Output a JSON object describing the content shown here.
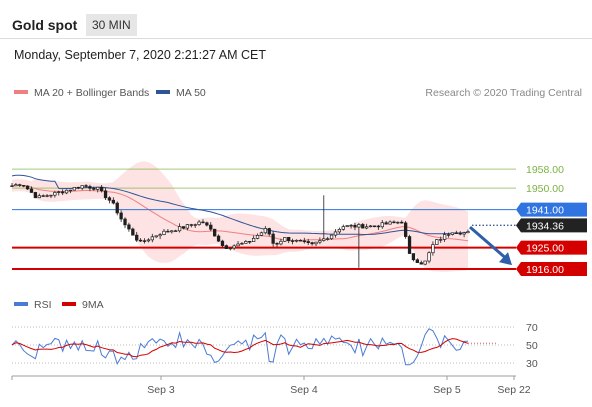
{
  "header": {
    "title": "Gold spot",
    "timeframe": "30 MIN"
  },
  "timestamp": "Monday, September 7, 2020 2:21:27 AM CET",
  "legend": {
    "items": [
      {
        "label": "MA 20 + Bollinger Bands",
        "color": "#f08080"
      },
      {
        "label": "MA 50",
        "color": "#2f5597"
      }
    ],
    "credit": "Research © 2020 Trading Central"
  },
  "chart_data": {
    "type": "candlestick",
    "x_ticks": [
      "Sep 3",
      "Sep 4",
      "Sep 5",
      "Sep 22"
    ],
    "price_axis": {
      "min": 1908,
      "max": 1985
    },
    "last_price": {
      "value": 1934.36,
      "label": "1934.36",
      "color": "#222222"
    },
    "levels": [
      {
        "value": 1958.0,
        "label": "1958.00",
        "color": "#7cb342",
        "kind": "resistance"
      },
      {
        "value": 1950.0,
        "label": "1950.00",
        "color": "#7cb342",
        "kind": "resistance"
      },
      {
        "value": 1941.0,
        "label": "1941.00",
        "color": "#2f74e0",
        "kind": "pivot"
      },
      {
        "value": 1925.0,
        "label": "1925.00",
        "color": "#d40000",
        "kind": "support"
      },
      {
        "value": 1916.0,
        "label": "1916.00",
        "color": "#d40000",
        "kind": "support"
      }
    ],
    "arrow": {
      "direction": "down",
      "color": "#2f5fa8"
    },
    "indicators": {
      "rsi": {
        "legend": [
          {
            "label": "RSI",
            "color": "#4a7bd4"
          },
          {
            "label": "9MA",
            "color": "#d40000"
          }
        ],
        "levels": [
          {
            "value": 70,
            "label": "70"
          },
          {
            "value": 50,
            "label": "50"
          },
          {
            "value": 30,
            "label": "30"
          }
        ],
        "range": [
          20,
          80
        ]
      }
    }
  }
}
